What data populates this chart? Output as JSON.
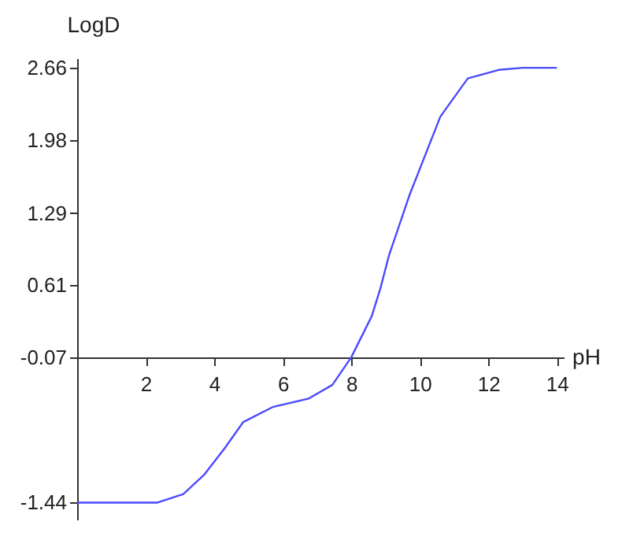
{
  "chart_data": {
    "type": "line",
    "xlabel": "pH",
    "ylabel": "LogD",
    "x": [
      0,
      1,
      2.35,
      3.1,
      3.7,
      4.3,
      4.85,
      5.7,
      6.75,
      7.45,
      8.0,
      8.6,
      8.85,
      9.1,
      9.7,
      10.6,
      11.4,
      12.3,
      13,
      14
    ],
    "series": [
      {
        "color": "#4a4aff",
        "values": [
          -1.44,
          -1.44,
          -1.44,
          -1.36,
          -1.18,
          -0.93,
          -0.68,
          -0.54,
          -0.46,
          -0.33,
          -0.07,
          0.32,
          0.58,
          0.89,
          1.46,
          2.2,
          2.56,
          2.64,
          2.66,
          2.66
        ]
      }
    ],
    "xlim": [
      0,
      14.2
    ],
    "ylim": [
      -1.6,
      2.75
    ],
    "xticks": [
      2,
      4,
      6,
      8,
      10,
      12,
      14
    ],
    "yticks": [
      -1.44,
      -0.07,
      0.61,
      1.29,
      1.98,
      2.66
    ],
    "grid": false,
    "marker": "none",
    "line_style": "solid"
  }
}
